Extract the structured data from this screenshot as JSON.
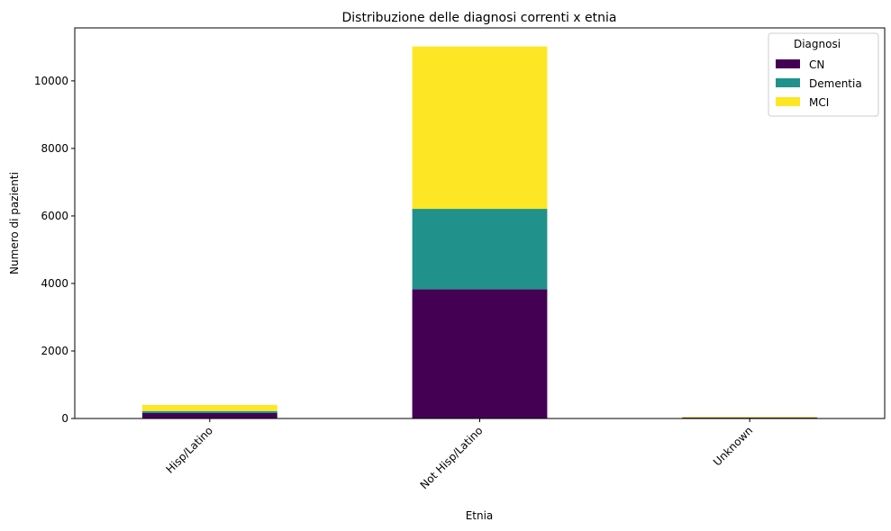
{
  "chart_data": {
    "type": "bar",
    "stacked": true,
    "title": "Distribuzione delle diagnosi correnti x etnia",
    "xlabel": "Etnia",
    "ylabel": "Numero di pazienti",
    "categories": [
      "Hisp/Latino",
      "Not Hisp/Latino",
      "Unknown"
    ],
    "series": [
      {
        "name": "CN",
        "color": "#440154",
        "values": [
          160,
          3830,
          25
        ]
      },
      {
        "name": "Dementia",
        "color": "#21918c",
        "values": [
          60,
          2380,
          5
        ]
      },
      {
        "name": "MCI",
        "color": "#fde725",
        "values": [
          180,
          4810,
          20
        ]
      }
    ],
    "ylim": [
      0,
      11570
    ],
    "yticks": [
      0,
      2000,
      4000,
      6000,
      8000,
      10000
    ],
    "ytick_labels": [
      "0",
      "2000",
      "4000",
      "6000",
      "8000",
      "10000"
    ],
    "grid": false,
    "legend": {
      "title": "Diagnosi",
      "position": "top-right"
    }
  }
}
